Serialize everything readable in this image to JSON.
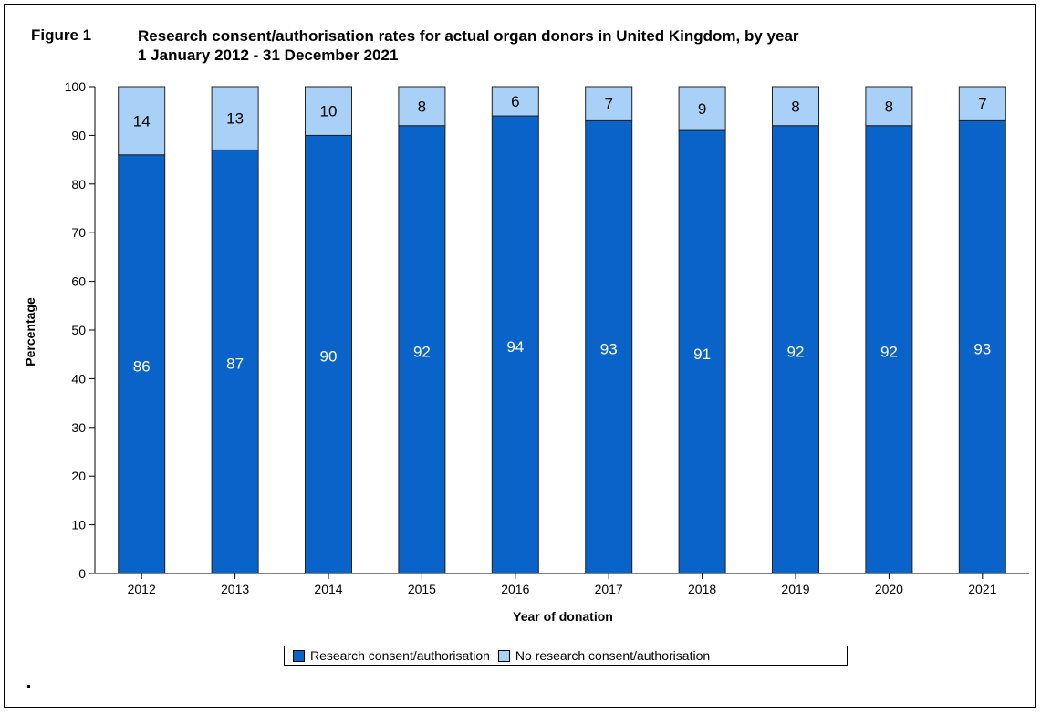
{
  "figure": {
    "label": "Figure 1",
    "title_line1": "Research consent/authorisation rates for actual organ donors in United Kingdom, by year",
    "title_line2": "1 January 2012 - 31 December 2021"
  },
  "colors": {
    "consent": "#0a63c9",
    "no_consent": "#a9d1f7",
    "axis": "#000000",
    "bar_outline": "#222222"
  },
  "legend": {
    "consent_label": "Research consent/authorisation",
    "no_consent_label": "No research consent/authorisation"
  },
  "chart_data": {
    "type": "bar",
    "stacked": true,
    "categories": [
      "2012",
      "2013",
      "2014",
      "2015",
      "2016",
      "2017",
      "2018",
      "2019",
      "2020",
      "2021"
    ],
    "series": [
      {
        "name": "Research consent/authorisation",
        "values": [
          86,
          87,
          90,
          92,
          94,
          93,
          91,
          92,
          92,
          93
        ]
      },
      {
        "name": "No research consent/authorisation",
        "values": [
          14,
          13,
          10,
          8,
          6,
          7,
          9,
          8,
          8,
          7
        ]
      }
    ],
    "xlabel": "Year of donation",
    "ylabel": "Percentage",
    "ylim": [
      0,
      100
    ],
    "yticks": [
      0,
      10,
      20,
      30,
      40,
      50,
      60,
      70,
      80,
      90,
      100
    ],
    "grid": false,
    "legend_position": "bottom"
  }
}
